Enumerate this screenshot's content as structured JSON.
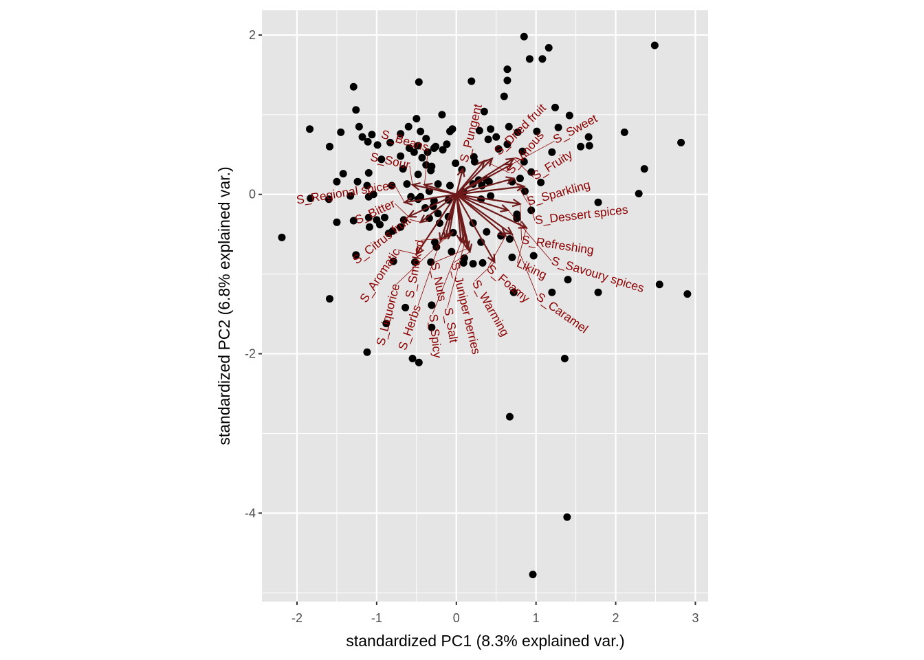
{
  "chart_data": {
    "type": "scatter",
    "subtype": "pca-biplot",
    "xlabel": "standardized PC1 (8.3% explained var.)",
    "ylabel": "standardized PC2 (6.8% explained var.)",
    "xlim": [
      -2.44,
      3.16
    ],
    "ylim": [
      -5.11,
      2.31
    ],
    "xticks": [
      -2,
      -1,
      0,
      1,
      2,
      3
    ],
    "yticks": [
      2,
      0,
      -2,
      -4
    ],
    "grid": true,
    "colors": {
      "panel": "#E5E5E5",
      "grid": "#FFFFFF",
      "points": "#000000",
      "arrows": "#6E1A1A",
      "labels": "#8B0000"
    },
    "points": [
      [
        0.85,
        1.98
      ],
      [
        2.49,
        1.87
      ],
      [
        1.16,
        1.84
      ],
      [
        0.92,
        1.7
      ],
      [
        1.08,
        1.7
      ],
      [
        0.64,
        1.57
      ],
      [
        0.64,
        1.43
      ],
      [
        -0.47,
        1.41
      ],
      [
        -1.29,
        1.35
      ],
      [
        0.19,
        1.42
      ],
      [
        0.6,
        1.23
      ],
      [
        -1.26,
        1.06
      ],
      [
        1.24,
        1.09
      ],
      [
        -0.18,
        1.0
      ],
      [
        0.35,
        1.04
      ],
      [
        1.42,
        0.99
      ],
      [
        -1.22,
        0.85
      ],
      [
        -1.84,
        0.82
      ],
      [
        -1.45,
        0.78
      ],
      [
        2.11,
        0.78
      ],
      [
        -0.5,
        0.95
      ],
      [
        -0.6,
        0.85
      ],
      [
        -0.7,
        0.76
      ],
      [
        -0.83,
        0.65
      ],
      [
        -1.06,
        0.75
      ],
      [
        -1.18,
        0.72
      ],
      [
        -1.11,
        0.66
      ],
      [
        -0.08,
        0.79
      ],
      [
        -0.05,
        0.82
      ],
      [
        -0.45,
        0.79
      ],
      [
        -0.38,
        0.7
      ],
      [
        0.43,
        0.82
      ],
      [
        0.29,
        0.8
      ],
      [
        0.66,
        0.85
      ],
      [
        0.77,
        0.78
      ],
      [
        1.01,
        0.79
      ],
      [
        1.28,
        0.84
      ],
      [
        1.66,
        0.72
      ],
      [
        -0.48,
        0.61
      ],
      [
        -0.26,
        0.6
      ],
      [
        -0.28,
        0.58
      ],
      [
        -0.59,
        0.58
      ],
      [
        -0.53,
        0.53
      ],
      [
        -0.43,
        0.46
      ],
      [
        -0.36,
        0.53
      ],
      [
        -0.17,
        0.56
      ],
      [
        -0.38,
        0.37
      ],
      [
        -0.12,
        0.63
      ],
      [
        -0.99,
        0.62
      ],
      [
        -1.59,
        0.6
      ],
      [
        -0.94,
        0.44
      ],
      [
        -0.7,
        0.48
      ],
      [
        -0.31,
        0.35
      ],
      [
        -0.32,
        0.3
      ],
      [
        -0.01,
        0.39
      ],
      [
        0.22,
        0.47
      ],
      [
        0.23,
        0.41
      ],
      [
        0.07,
        0.31
      ],
      [
        -0.48,
        0.25
      ],
      [
        -0.67,
        0.32
      ],
      [
        -1.1,
        0.27
      ],
      [
        -1.12,
        0.11
      ],
      [
        -1.42,
        0.26
      ],
      [
        -1.5,
        0.16
      ],
      [
        -1.24,
        0.16
      ],
      [
        0.4,
        0.69
      ],
      [
        0.5,
        0.72
      ],
      [
        0.53,
        0.57
      ],
      [
        0.64,
        0.63
      ],
      [
        0.83,
        0.54
      ],
      [
        1.2,
        0.53
      ],
      [
        1.56,
        0.6
      ],
      [
        1.67,
        0.61
      ],
      [
        2.82,
        0.65
      ],
      [
        2.36,
        0.32
      ],
      [
        2.29,
        0.01
      ],
      [
        1.78,
        -0.1
      ],
      [
        0.85,
        0.41
      ],
      [
        0.28,
        0.18
      ],
      [
        0.21,
        0.13
      ],
      [
        0.32,
        0.11
      ],
      [
        0.38,
        0.18
      ],
      [
        0.41,
        0.16
      ],
      [
        0.7,
        0.16
      ],
      [
        0.94,
        0.28
      ],
      [
        1.06,
        0.15
      ],
      [
        0.8,
        0.2
      ],
      [
        0.86,
        0.04
      ],
      [
        0.09,
        0.03
      ],
      [
        0.43,
        -0.02
      ],
      [
        0.31,
        -0.06
      ],
      [
        -0.23,
        0.13
      ],
      [
        -0.34,
        0.04
      ],
      [
        -0.08,
        0.11
      ],
      [
        -0.45,
        -0.03
      ],
      [
        -0.57,
        -0.03
      ],
      [
        -0.48,
        -0.06
      ],
      [
        -0.62,
        0.13
      ],
      [
        -0.81,
        0.11
      ],
      [
        -1.1,
        -0.03
      ],
      [
        -1.04,
        0.0
      ],
      [
        -1.33,
        -0.02
      ],
      [
        -1.6,
        -0.06
      ],
      [
        -1.83,
        -0.05
      ],
      [
        -1.5,
        -0.35
      ],
      [
        -1.29,
        -0.33
      ],
      [
        -1.0,
        -0.32
      ],
      [
        -0.96,
        -0.38
      ],
      [
        -1.1,
        -0.29
      ],
      [
        -0.66,
        -0.32
      ],
      [
        -0.7,
        -0.41
      ],
      [
        -0.85,
        -0.49
      ],
      [
        -0.8,
        -0.46
      ],
      [
        -1.09,
        -0.41
      ],
      [
        -0.9,
        -0.29
      ],
      [
        -0.28,
        -0.08
      ],
      [
        -0.29,
        -0.15
      ],
      [
        -0.1,
        -0.07
      ],
      [
        -0.34,
        -0.3
      ],
      [
        -0.39,
        -0.17
      ],
      [
        -0.1,
        -0.28
      ],
      [
        -0.23,
        -0.24
      ],
      [
        -0.21,
        -0.36
      ],
      [
        0.21,
        -0.36
      ],
      [
        0.76,
        -0.25
      ],
      [
        0.94,
        -0.2
      ],
      [
        0.76,
        -0.3
      ],
      [
        0.56,
        -0.52
      ],
      [
        0.67,
        -0.56
      ],
      [
        0.38,
        -0.47
      ],
      [
        0.1,
        -0.8
      ],
      [
        0.31,
        -0.6
      ],
      [
        -0.06,
        -0.72
      ],
      [
        0.09,
        -0.86
      ],
      [
        0.21,
        -0.87
      ],
      [
        0.33,
        -0.86
      ],
      [
        -0.32,
        -0.85
      ],
      [
        -0.52,
        -0.85
      ],
      [
        -0.27,
        -0.6
      ],
      [
        -0.25,
        -0.66
      ],
      [
        -0.04,
        -0.48
      ],
      [
        -0.79,
        -0.84
      ],
      [
        -1.26,
        -0.76
      ],
      [
        -2.19,
        -0.54
      ],
      [
        0.7,
        -0.79
      ],
      [
        0.97,
        -0.77
      ],
      [
        1.4,
        -1.07
      ],
      [
        1.2,
        -1.23
      ],
      [
        0.72,
        -1.23
      ],
      [
        1.78,
        -1.23
      ],
      [
        2.55,
        -1.13
      ],
      [
        2.9,
        -1.25
      ],
      [
        -0.64,
        -1.42
      ],
      [
        -0.31,
        -1.39
      ],
      [
        -0.31,
        -1.67
      ],
      [
        -0.88,
        -1.62
      ],
      [
        -1.59,
        -1.31
      ],
      [
        -1.12,
        -1.98
      ],
      [
        -0.55,
        -2.06
      ],
      [
        -0.47,
        -2.11
      ],
      [
        1.36,
        -2.06
      ],
      [
        0.67,
        -2.79
      ],
      [
        1.39,
        -4.05
      ],
      [
        0.96,
        -4.77
      ]
    ],
    "arrows": [
      {
        "label": "S_Pungent",
        "x": 0.08,
        "y": 0.32
      },
      {
        "label": "S_Dried fruit",
        "x": 0.45,
        "y": 0.45
      },
      {
        "label": "S_Vinous",
        "x": 0.35,
        "y": 0.42
      },
      {
        "label": "S_Fruity",
        "x": 0.72,
        "y": 0.45
      },
      {
        "label": "S_Sweet",
        "x": 0.7,
        "y": 0.38
      },
      {
        "label": "S_Sparkling",
        "x": 0.72,
        "y": 0.2
      },
      {
        "label": "S_Dessert spices",
        "x": 0.85,
        "y": 0.1
      },
      {
        "label": "S_Refreshing",
        "x": 0.8,
        "y": -0.12
      },
      {
        "label": "S_Savoury spices",
        "x": 0.65,
        "y": -0.2
      },
      {
        "label": "Liking",
        "x": 0.88,
        "y": -0.42
      },
      {
        "label": "S_Foamy",
        "x": 0.62,
        "y": -0.52
      },
      {
        "label": "S_Caramel",
        "x": 0.7,
        "y": -0.5
      },
      {
        "label": "S_Warming",
        "x": 0.48,
        "y": -0.85
      },
      {
        "label": "S_Juniper berries",
        "x": 0.17,
        "y": -0.72
      },
      {
        "label": "S_Nuts",
        "x": 0.14,
        "y": -0.68
      },
      {
        "label": "S_Salt",
        "x": 0.1,
        "y": -0.62
      },
      {
        "label": "S_Spicy",
        "x": 0.06,
        "y": -0.6
      },
      {
        "label": "S_Smoked",
        "x": -0.1,
        "y": -0.55
      },
      {
        "label": "S_Liquorice",
        "x": -0.14,
        "y": -0.55
      },
      {
        "label": "S_Herbs",
        "x": -0.2,
        "y": -0.58
      },
      {
        "label": "S_Aromatic",
        "x": -0.5,
        "y": -0.75
      },
      {
        "label": "S_Citrus fruit",
        "x": -0.45,
        "y": -0.35
      },
      {
        "label": "S_Bitter",
        "x": -0.6,
        "y": -0.28
      },
      {
        "label": "S_Regional spices",
        "x": -0.65,
        "y": -0.1
      },
      {
        "label": "S_Sour",
        "x": -0.55,
        "y": 0.12
      },
      {
        "label": "S_Beans",
        "x": -0.4,
        "y": 0.12
      }
    ]
  }
}
